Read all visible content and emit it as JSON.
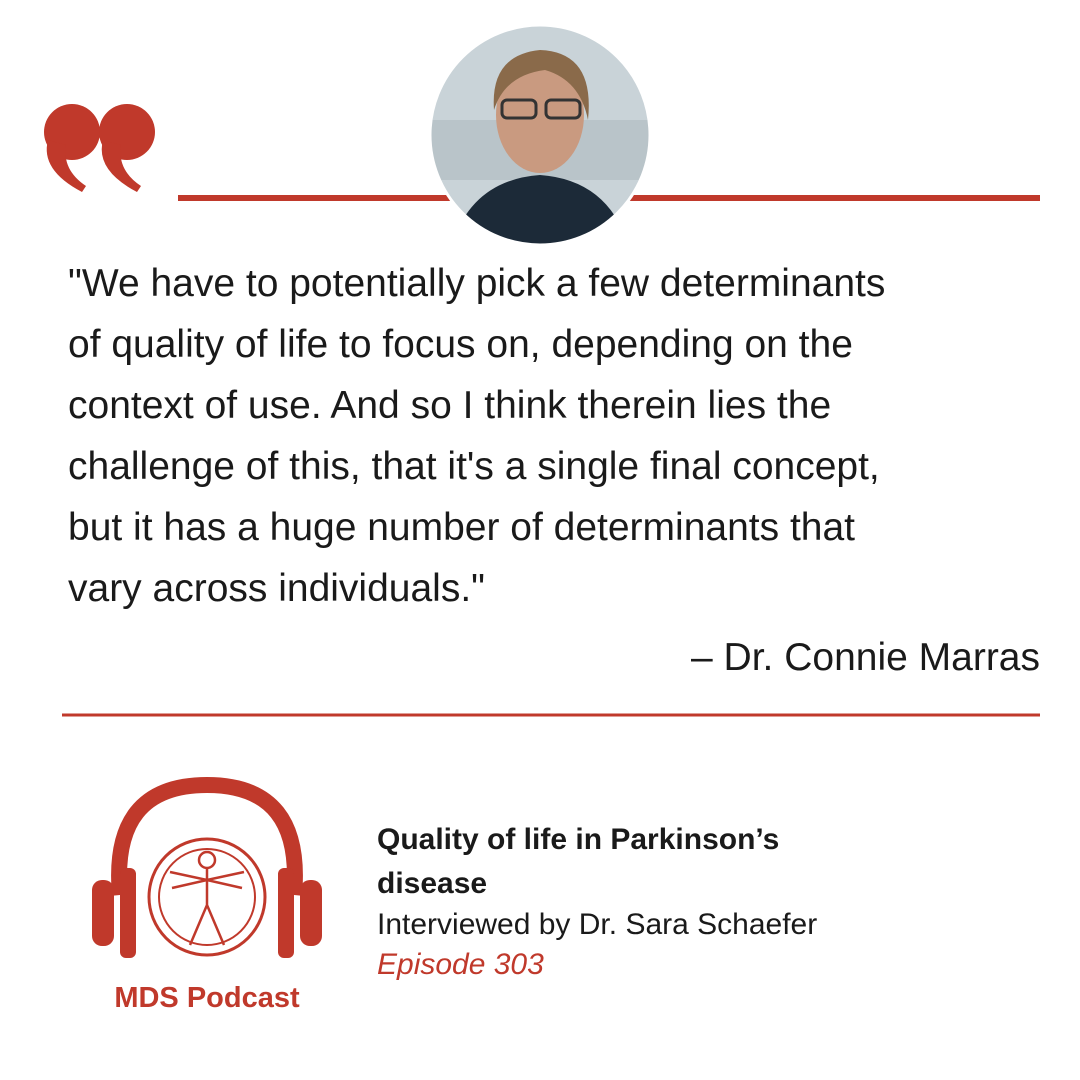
{
  "quote": {
    "lines": [
      "\"We have to potentially pick a few determinants",
      "of quality of life to focus on, depending on the",
      "context of use. And so I think therein lies the",
      "challenge of this, that it's a single final concept,",
      "but it has a huge number of determinants that",
      "vary across individuals.\""
    ],
    "attribution": "– Dr. Connie Marras"
  },
  "episode": {
    "title": "Quality of life in Parkinson’s disease",
    "interviewer": "Interviewed by Dr. Sara Schaefer",
    "number": "Episode 303"
  },
  "logo": {
    "label": "MDS Podcast"
  }
}
